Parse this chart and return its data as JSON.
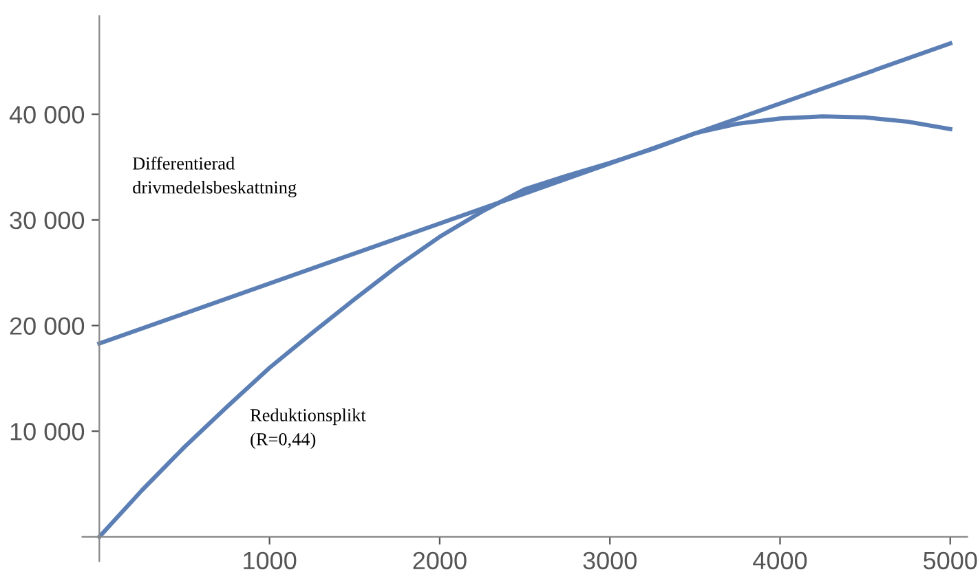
{
  "chart_data": {
    "type": "line",
    "xlim": [
      -100,
      5100
    ],
    "ylim": [
      -2300,
      49300
    ],
    "xticks": [
      1000,
      2000,
      3000,
      4000,
      5000
    ],
    "yticks": [
      {
        "value": 10000,
        "label": "10 000"
      },
      {
        "value": 20000,
        "label": "20 000"
      },
      {
        "value": 30000,
        "label": "30 000"
      },
      {
        "value": 40000,
        "label": "40 000"
      }
    ],
    "grid": false,
    "legend": false,
    "series": [
      {
        "color": "#5b7fb5",
        "x": [
          0,
          5000
        ],
        "values": [
          18300,
          46700
        ]
      },
      {
        "color": "#5b7fb5",
        "x": [
          0,
          250,
          500,
          750,
          1000,
          1250,
          1500,
          1750,
          2000,
          2250,
          2500,
          2750,
          3000,
          3250,
          3500,
          3750,
          4000,
          4250,
          4500,
          4750,
          5000
        ],
        "values": [
          0,
          4400,
          8500,
          12300,
          16000,
          19300,
          22500,
          25600,
          28400,
          30800,
          32900,
          34200,
          35400,
          36700,
          38200,
          39100,
          39600,
          39800,
          39700,
          39300,
          38600
        ]
      }
    ],
    "annotations": [
      "Differentierad\ndrivmedelsbeskattning",
      "Reduktionsplikt\n(R=0,44)"
    ]
  }
}
